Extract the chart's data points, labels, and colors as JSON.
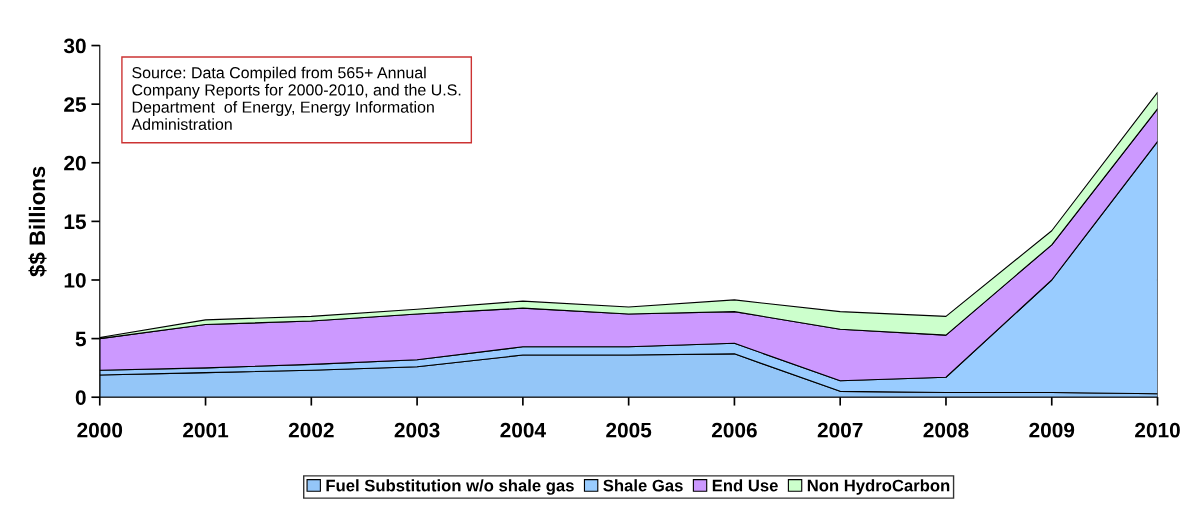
{
  "chart_data": {
    "type": "area",
    "stacked": true,
    "ylabel": "$$ Billions",
    "x": [
      2000,
      2001,
      2002,
      2003,
      2004,
      2005,
      2006,
      2007,
      2008,
      2009,
      2010
    ],
    "xlim": [
      2000,
      2010
    ],
    "xticks": [
      2000,
      2001,
      2002,
      2003,
      2004,
      2005,
      2006,
      2007,
      2008,
      2009,
      2010
    ],
    "ylim": [
      0,
      30
    ],
    "yticks": [
      0,
      5,
      10,
      15,
      20,
      25,
      30
    ],
    "series": [
      {
        "name": "Fuel Substitution w/o shale gas",
        "color": "#94c6f8",
        "values": [
          1.9,
          2.1,
          2.3,
          2.6,
          3.6,
          3.6,
          3.7,
          0.5,
          0.4,
          0.4,
          0.3
        ]
      },
      {
        "name": "Shale Gas",
        "color": "#99ccff",
        "values": [
          0.4,
          0.4,
          0.5,
          0.6,
          0.7,
          0.7,
          0.9,
          0.9,
          1.3,
          9.6,
          21.5
        ]
      },
      {
        "name": "End Use",
        "color": "#cc99ff",
        "values": [
          2.7,
          3.7,
          3.7,
          3.9,
          3.3,
          2.8,
          2.7,
          4.4,
          3.6,
          3.0,
          2.8
        ]
      },
      {
        "name": "Non HydroCarbon",
        "color": "#ccffcc",
        "values": [
          0.1,
          0.4,
          0.4,
          0.4,
          0.6,
          0.6,
          1.0,
          1.5,
          1.6,
          1.2,
          1.4
        ]
      }
    ],
    "annotations": [
      "Source: Data Compiled from 565+ Annual Company Reports for 2000-2010, and the U.S. Department  of Energy, Energy Information Administration"
    ],
    "legend": "bottom",
    "grid": false
  }
}
